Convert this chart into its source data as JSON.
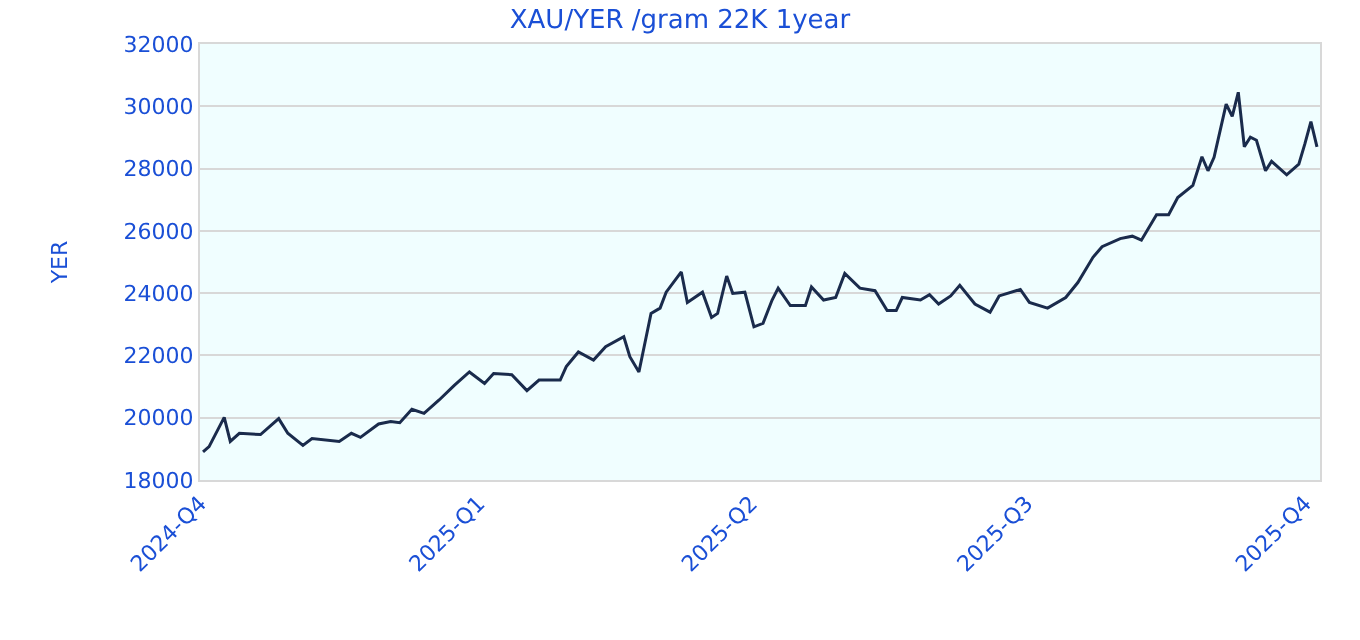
{
  "chart_data": {
    "type": "line",
    "title": "XAU/YER /gram 22K 1year",
    "ylabel": "YER",
    "x": [
      "2024-10-02",
      "2024-10-04",
      "2024-10-09",
      "2024-10-11",
      "2024-10-14",
      "2024-10-21",
      "2024-10-27",
      "2024-10-30",
      "2024-11-04",
      "2024-11-07",
      "2024-11-16",
      "2024-11-20",
      "2024-11-23",
      "2024-11-29",
      "2024-12-03",
      "2024-12-06",
      "2024-12-10",
      "2024-12-14",
      "2024-12-19",
      "2024-12-24",
      "2024-12-29",
      "2025-01-03",
      "2025-01-06",
      "2025-01-12",
      "2025-01-17",
      "2025-01-21",
      "2025-01-28",
      "2025-01-30",
      "2025-02-03",
      "2025-02-08",
      "2025-02-12",
      "2025-02-18",
      "2025-02-20",
      "2025-02-23",
      "2025-02-27",
      "2025-03-02",
      "2025-03-04",
      "2025-03-09",
      "2025-03-11",
      "2025-03-16",
      "2025-03-19",
      "2025-03-21",
      "2025-03-24",
      "2025-03-26",
      "2025-03-30",
      "2025-04-02",
      "2025-04-05",
      "2025-04-08",
      "2025-04-10",
      "2025-04-14",
      "2025-04-19",
      "2025-04-21",
      "2025-04-25",
      "2025-04-29",
      "2025-05-02",
      "2025-05-07",
      "2025-05-12",
      "2025-05-16",
      "2025-05-19",
      "2025-05-21",
      "2025-05-27",
      "2025-05-30",
      "2025-06-02",
      "2025-06-06",
      "2025-06-09",
      "2025-06-14",
      "2025-06-19",
      "2025-06-22",
      "2025-06-29",
      "2025-07-02",
      "2025-07-08",
      "2025-07-14",
      "2025-07-18",
      "2025-07-23",
      "2025-07-26",
      "2025-08-01",
      "2025-08-05",
      "2025-08-08",
      "2025-08-13",
      "2025-08-17",
      "2025-08-20",
      "2025-08-25",
      "2025-08-28",
      "2025-08-30",
      "2025-09-01",
      "2025-09-05",
      "2025-09-07",
      "2025-09-09",
      "2025-09-11",
      "2025-09-13",
      "2025-09-15",
      "2025-09-18",
      "2025-09-20",
      "2025-09-25",
      "2025-09-29",
      "2025-10-01",
      "2025-10-03",
      "2025-10-05"
    ],
    "series": [
      {
        "color": "#1a2b4c",
        "values": [
          18900,
          19070,
          20010,
          19240,
          19500,
          19460,
          19970,
          19500,
          19110,
          19330,
          19240,
          19500,
          19370,
          19800,
          19880,
          19840,
          20270,
          20140,
          20570,
          21040,
          21470,
          21100,
          21420,
          21380,
          20870,
          21210,
          21210,
          21640,
          22110,
          21850,
          22280,
          22600,
          21960,
          21470,
          23350,
          23520,
          24030,
          24680,
          23700,
          24030,
          23220,
          23350,
          24550,
          23990,
          24030,
          22920,
          23030,
          23780,
          24160,
          23600,
          23600,
          24200,
          23780,
          23860,
          24630,
          24160,
          24080,
          23440,
          23440,
          23860,
          23780,
          23950,
          23650,
          23910,
          24250,
          23650,
          23390,
          23910,
          24120,
          23700,
          23520,
          23860,
          24340,
          25150,
          25490,
          25750,
          25830,
          25700,
          26520,
          26520,
          27070,
          27460,
          28380,
          27930,
          28360,
          30070,
          29680,
          30450,
          28700,
          29010,
          28910,
          27930,
          28230,
          27800,
          28140,
          28790,
          29510,
          28700
        ]
      }
    ],
    "xlim": [
      "2024-10-01",
      "2025-10-06"
    ],
    "xticks": [
      {
        "value": "2024-10-01",
        "label": "2024-Q4"
      },
      {
        "value": "2025-01-01",
        "label": "2025-Q1"
      },
      {
        "value": "2025-04-01",
        "label": "2025-Q2"
      },
      {
        "value": "2025-07-01",
        "label": "2025-Q3"
      },
      {
        "value": "2025-10-01",
        "label": "2025-Q4"
      }
    ],
    "ylim": [
      18000,
      32000
    ],
    "yticks": [
      18000,
      20000,
      22000,
      24000,
      26000,
      28000,
      30000,
      32000
    ],
    "grid": "y",
    "marker": "none",
    "line_style": "solid"
  }
}
